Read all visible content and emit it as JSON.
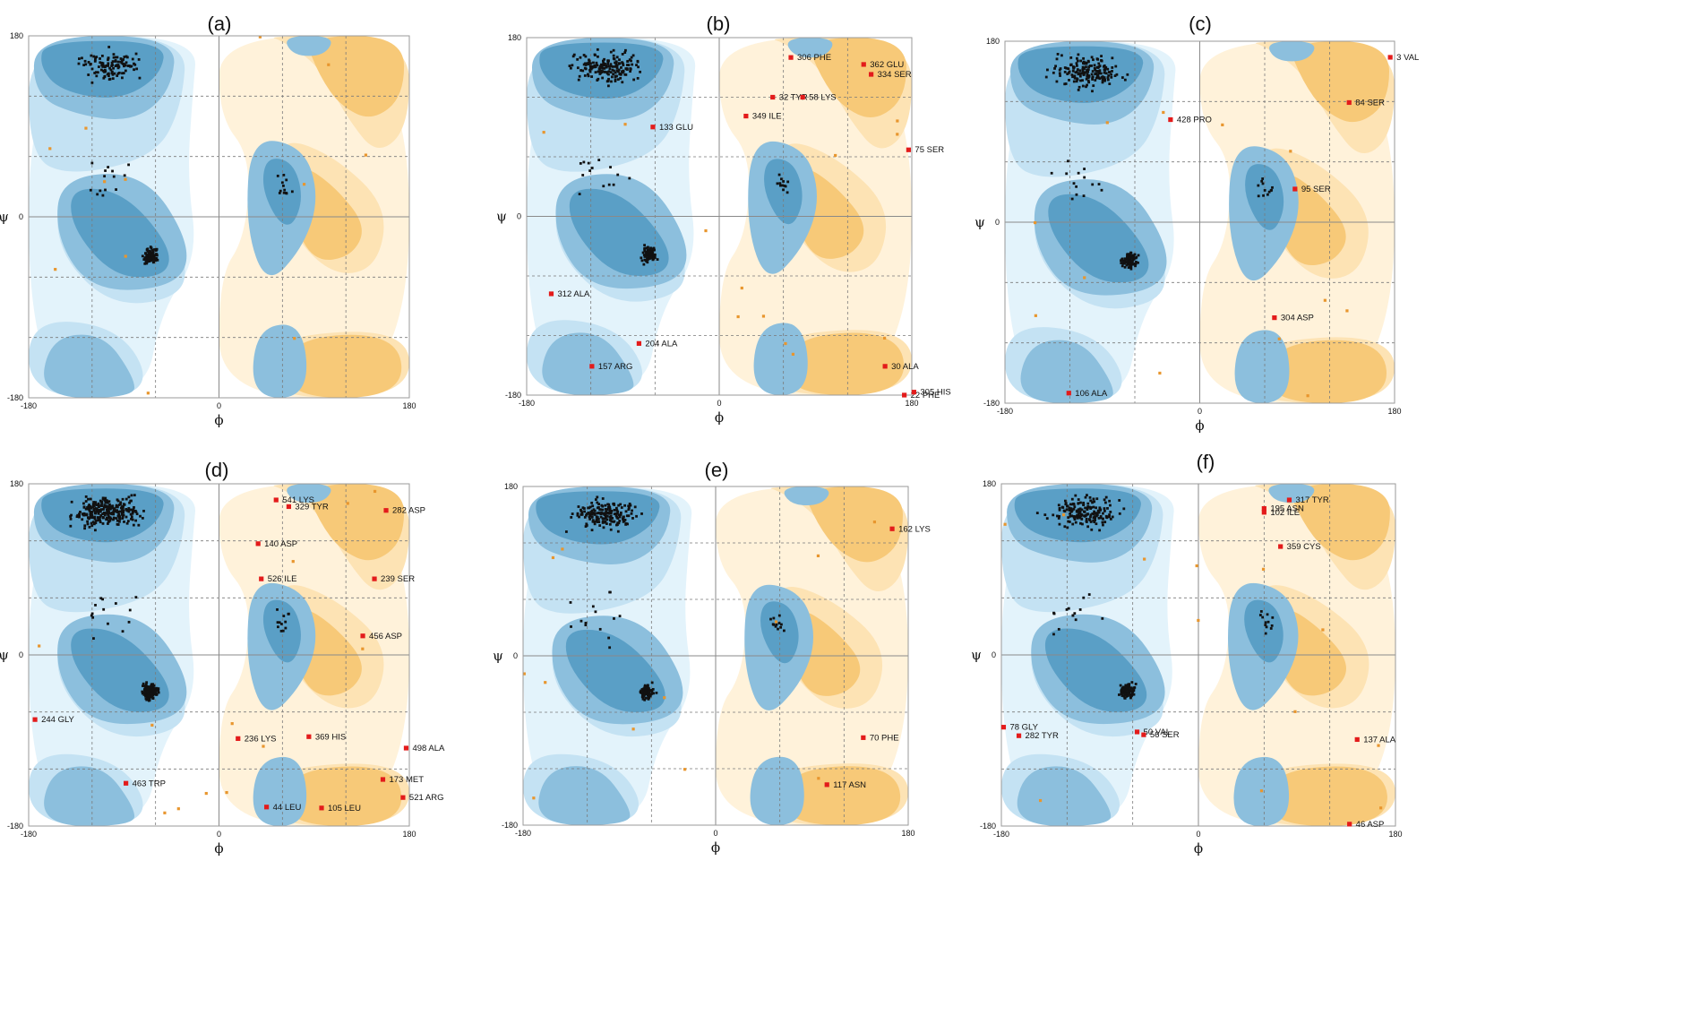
{
  "figure": {
    "colors": {
      "core": "#5a9fc6",
      "allowed": "#8cbfdd",
      "generous": "#c4e2f3",
      "generous_light": "#e3f3fb",
      "left_core": "#f7c978",
      "left_allowed": "#fde3b4",
      "left_generous": "#fff2da",
      "outlier": "#e31b1b",
      "glycine": "#e8962e",
      "residue": "#111111",
      "grid": "#7a7a7a"
    }
  },
  "chart_data": [
    {
      "panel": "(a)",
      "type": "scatter",
      "xlabel": "ϕ",
      "ylabel": "ψ",
      "xlim": [
        -180,
        180
      ],
      "ylim": [
        -180,
        180
      ],
      "x_ticks": [
        "-180",
        "0",
        "180"
      ],
      "y_ticks": [
        "180",
        "0",
        "-180"
      ],
      "grid": true,
      "outliers": []
    },
    {
      "panel": "(b)",
      "type": "scatter",
      "xlabel": "ϕ",
      "ylabel": "ψ",
      "xlim": [
        -180,
        180
      ],
      "ylim": [
        -180,
        180
      ],
      "x_ticks": [
        "-180",
        "0",
        "180"
      ],
      "y_ticks": [
        "180",
        "0",
        "-180"
      ],
      "grid": true,
      "outliers": [
        {
          "label": "306 PHE",
          "x": 67,
          "y": 160
        },
        {
          "label": "362 GLU",
          "x": 135,
          "y": 153
        },
        {
          "label": "334 SER",
          "x": 142,
          "y": 143
        },
        {
          "label": "32 TYR",
          "x": 50,
          "y": 120
        },
        {
          "label": "58 LYS",
          "x": 78,
          "y": 120
        },
        {
          "label": "349 ILE",
          "x": 25,
          "y": 101
        },
        {
          "label": "133 GLU",
          "x": -62,
          "y": 90
        },
        {
          "label": "75 SER",
          "x": 177,
          "y": 67
        },
        {
          "label": "312 ALA",
          "x": -157,
          "y": -78
        },
        {
          "label": "204 ALA",
          "x": -75,
          "y": -128
        },
        {
          "label": "157 ARG",
          "x": -119,
          "y": -151
        },
        {
          "label": "30 ALA",
          "x": 155,
          "y": -151
        },
        {
          "label": "22 PHE",
          "x": 173,
          "y": -180
        },
        {
          "label": "305 HIS",
          "x": 182,
          "y": -177
        }
      ]
    },
    {
      "panel": "(c)",
      "type": "scatter",
      "xlabel": "ϕ",
      "ylabel": "ψ",
      "xlim": [
        -180,
        180
      ],
      "ylim": [
        -180,
        180
      ],
      "x_ticks": [
        "-180",
        "0",
        "180"
      ],
      "y_ticks": [
        "180",
        "0",
        "-180"
      ],
      "grid": true,
      "outliers": [
        {
          "label": "3 VAL",
          "x": 176,
          "y": 164
        },
        {
          "label": "84 SER",
          "x": 138,
          "y": 119
        },
        {
          "label": "428 PRO",
          "x": -27,
          "y": 102
        },
        {
          "label": "95 SER",
          "x": 88,
          "y": 33
        },
        {
          "label": "304 ASP",
          "x": 69,
          "y": -95
        },
        {
          "label": "106 ALA",
          "x": -121,
          "y": -170
        }
      ]
    },
    {
      "panel": "(d)",
      "type": "scatter",
      "xlabel": "ϕ",
      "ylabel": "ψ",
      "xlim": [
        -180,
        180
      ],
      "ylim": [
        -180,
        180
      ],
      "x_ticks": [
        "-180",
        "0",
        "180"
      ],
      "y_ticks": [
        "180",
        "0",
        "-180"
      ],
      "grid": true,
      "outliers": [
        {
          "label": "541 LYS",
          "x": 54,
          "y": 163
        },
        {
          "label": "329 TYR",
          "x": 66,
          "y": 156
        },
        {
          "label": "282 ASP",
          "x": 158,
          "y": 152
        },
        {
          "label": "140 ASP",
          "x": 37,
          "y": 117
        },
        {
          "label": "526 ILE",
          "x": 40,
          "y": 80
        },
        {
          "label": "239 SER",
          "x": 147,
          "y": 80
        },
        {
          "label": "456 ASP",
          "x": 136,
          "y": 20
        },
        {
          "label": "244 GLY",
          "x": -174,
          "y": -68
        },
        {
          "label": "236 LYS",
          "x": 18,
          "y": -88
        },
        {
          "label": "369 HIS",
          "x": 85,
          "y": -86
        },
        {
          "label": "498 ALA",
          "x": 177,
          "y": -98
        },
        {
          "label": "463 TRP",
          "x": -88,
          "y": -135
        },
        {
          "label": "173 MET",
          "x": 155,
          "y": -131
        },
        {
          "label": "521 ARG",
          "x": 174,
          "y": -150
        },
        {
          "label": "44 LEU",
          "x": 45,
          "y": -160
        },
        {
          "label": "105 LEU",
          "x": 97,
          "y": -161
        }
      ]
    },
    {
      "panel": "(e)",
      "type": "scatter",
      "xlabel": "ϕ",
      "ylabel": "ψ",
      "xlim": [
        -180,
        180
      ],
      "ylim": [
        -180,
        180
      ],
      "x_ticks": [
        "-180",
        "0",
        "180"
      ],
      "y_ticks": [
        "180",
        "0",
        "-180"
      ],
      "grid": true,
      "outliers": [
        {
          "label": "162 LYS",
          "x": 165,
          "y": 135
        },
        {
          "label": "70 PHE",
          "x": 138,
          "y": -87
        },
        {
          "label": "117 ASN",
          "x": 104,
          "y": -137
        }
      ]
    },
    {
      "panel": "(f)",
      "type": "scatter",
      "xlabel": "ϕ",
      "ylabel": "ψ",
      "xlim": [
        -180,
        180
      ],
      "ylim": [
        -180,
        180
      ],
      "x_ticks": [
        "-180",
        "0",
        "180"
      ],
      "y_ticks": [
        "180",
        "0",
        "-180"
      ],
      "grid": true,
      "outliers": [
        {
          "label": "317 TYR",
          "x": 83,
          "y": 163
        },
        {
          "label": "195 ASN",
          "x": 60,
          "y": 154
        },
        {
          "label": "102 ILE",
          "x": 60,
          "y": 150
        },
        {
          "label": "359 CYS",
          "x": 75,
          "y": 114
        },
        {
          "label": "78 GLY",
          "x": -178,
          "y": -76
        },
        {
          "label": "282 TYR",
          "x": -164,
          "y": -85
        },
        {
          "label": "50 VAL",
          "x": -56,
          "y": -81
        },
        {
          "label": "56 SER",
          "x": -50,
          "y": -84
        },
        {
          "label": "137 ALA",
          "x": 145,
          "y": -89
        },
        {
          "label": "46 ASP",
          "x": 138,
          "y": -178
        }
      ]
    }
  ]
}
